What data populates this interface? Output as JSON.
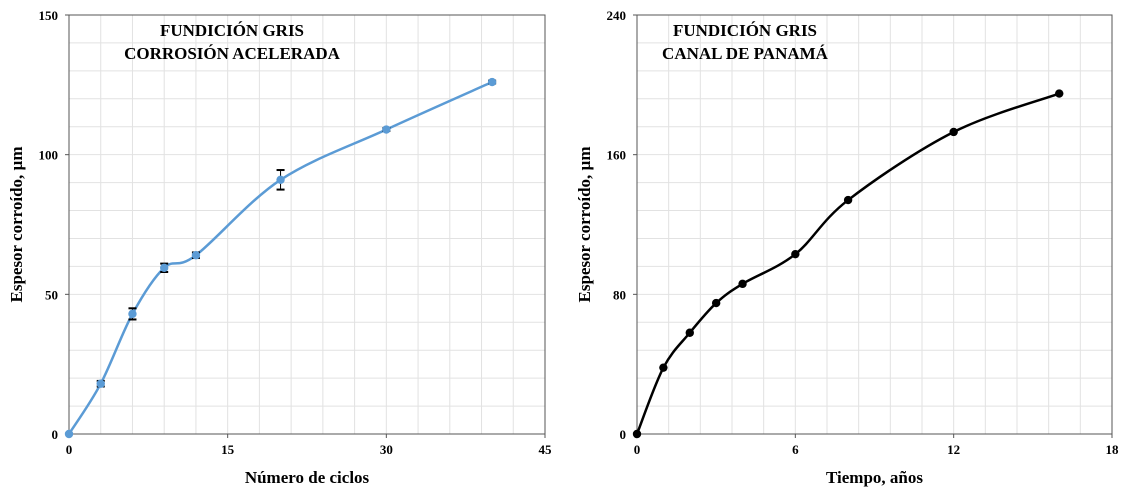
{
  "chart_data": [
    {
      "type": "line",
      "title": [
        "FUNDICIÓN GRIS",
        "CORROSIÓN ACELERADA"
      ],
      "xlabel": "Número de ciclos",
      "ylabel": "Espesor corroído, µm",
      "xlim": [
        0,
        45
      ],
      "ylim": [
        0,
        150
      ],
      "xticks": [
        0,
        15,
        30,
        45
      ],
      "yticks": [
        0,
        50,
        100,
        150
      ],
      "grid": true,
      "line_color": "#5B9BD5",
      "marker_color": "#5B9BD5",
      "error_bars": true,
      "series": [
        {
          "x": [
            0,
            3,
            6,
            9,
            12,
            20,
            30,
            40
          ],
          "y": [
            0,
            18,
            43,
            59.5,
            64,
            91,
            109,
            126
          ],
          "err": [
            0,
            1,
            2,
            1.5,
            1,
            3.5,
            0.5,
            0.5
          ]
        }
      ]
    },
    {
      "type": "line",
      "title": [
        "FUNDICIÓN GRIS",
        "CANAL DE PANAMÁ"
      ],
      "xlabel": "Tiempo, años",
      "ylabel": "Espesor corroído, µm",
      "xlim": [
        0,
        18
      ],
      "ylim": [
        0,
        240
      ],
      "xticks": [
        0,
        6,
        12,
        18
      ],
      "yticks": [
        0,
        80,
        160,
        240
      ],
      "grid": true,
      "line_color": "#000000",
      "marker_color": "#000000",
      "series": [
        {
          "x": [
            0,
            1,
            2,
            3,
            4,
            6,
            8,
            12,
            16
          ],
          "y": [
            0,
            38,
            58,
            75,
            86,
            103,
            134,
            173,
            195
          ]
        }
      ]
    }
  ]
}
